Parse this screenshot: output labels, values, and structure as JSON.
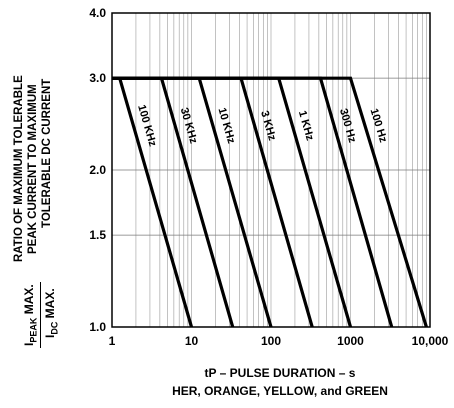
{
  "chart_data": {
    "type": "line",
    "xscale": "log",
    "yscale": "log",
    "xlim": [
      1,
      10000
    ],
    "ylim": [
      1.0,
      4.0
    ],
    "x_ticks": [
      "1",
      "10",
      "100",
      "1000",
      "10,000"
    ],
    "y_ticks": [
      "1.0",
      "1.5",
      "2.0",
      "3.0",
      "4.0"
    ],
    "grid": true,
    "xlabel": "tP – PULSE DURATION – s",
    "subtitle": "HER, ORANGE, YELLOW, and GREEN",
    "ylabel_lines": [
      "RATIO OF MAXIMUM TOLERABLE",
      "PEAK CURRENT TO MAXIMUM",
      "TOLERABLE DC CURRENT"
    ],
    "ylabel_formula": {
      "numerator": "I",
      "numerator_sub": "PEAK",
      "numerator_suffix": " MAX.",
      "denominator": "I",
      "denominator_sub": "DC",
      "denominator_suffix": " MAX."
    },
    "series": [
      {
        "name": "100 KHz",
        "x": [
          1,
          1.25,
          10
        ],
        "y": [
          3.0,
          3.0,
          1.0
        ]
      },
      {
        "name": "30 KHz",
        "x": [
          1,
          4.2,
          33
        ],
        "y": [
          3.0,
          3.0,
          1.0
        ]
      },
      {
        "name": "10 KHz",
        "x": [
          1,
          12.5,
          100
        ],
        "y": [
          3.0,
          3.0,
          1.0
        ]
      },
      {
        "name": "3 KHz",
        "x": [
          1,
          42,
          330
        ],
        "y": [
          3.0,
          3.0,
          1.0
        ]
      },
      {
        "name": "1 KHz",
        "x": [
          1,
          125,
          1000
        ],
        "y": [
          3.0,
          3.0,
          1.0
        ]
      },
      {
        "name": "300 Hz",
        "x": [
          1,
          420,
          3300
        ],
        "y": [
          3.0,
          3.0,
          1.0
        ]
      },
      {
        "name": "100 Hz",
        "x": [
          1,
          1000,
          9000
        ],
        "y": [
          3.0,
          3.0,
          1.0
        ]
      }
    ]
  }
}
